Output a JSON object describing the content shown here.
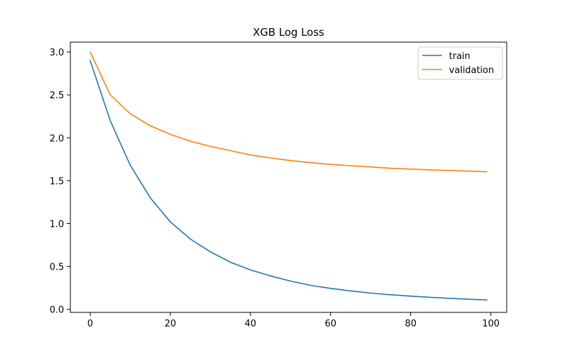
{
  "chart_data": {
    "type": "line",
    "title": "XGB Log Loss",
    "xlabel": "",
    "ylabel": "",
    "xlim": [
      -4.95,
      103.95
    ],
    "ylim": [
      -0.035,
      3.115
    ],
    "xticks": [
      0,
      20,
      40,
      60,
      80,
      100
    ],
    "yticks": [
      0.0,
      0.5,
      1.0,
      1.5,
      2.0,
      2.5,
      3.0
    ],
    "xtick_labels": [
      "0",
      "20",
      "40",
      "60",
      "80",
      "100"
    ],
    "ytick_labels": [
      "0.0",
      "0.5",
      "1.0",
      "1.5",
      "2.0",
      "2.5",
      "3.0"
    ],
    "grid": false,
    "legend_position": "top-right",
    "x": [
      0,
      5,
      10,
      15,
      20,
      25,
      30,
      35,
      40,
      45,
      50,
      55,
      60,
      65,
      70,
      75,
      80,
      85,
      90,
      95,
      99
    ],
    "series": [
      {
        "name": "train",
        "color": "#1f77b4",
        "values": [
          2.9,
          2.2,
          1.68,
          1.3,
          1.02,
          0.82,
          0.67,
          0.55,
          0.46,
          0.39,
          0.33,
          0.28,
          0.245,
          0.215,
          0.19,
          0.17,
          0.155,
          0.14,
          0.128,
          0.118,
          0.11
        ]
      },
      {
        "name": "validation",
        "color": "#ff7f0e",
        "values": [
          3.0,
          2.5,
          2.28,
          2.14,
          2.04,
          1.96,
          1.9,
          1.85,
          1.8,
          1.765,
          1.735,
          1.71,
          1.69,
          1.675,
          1.66,
          1.645,
          1.635,
          1.625,
          1.618,
          1.61,
          1.605
        ]
      }
    ]
  }
}
